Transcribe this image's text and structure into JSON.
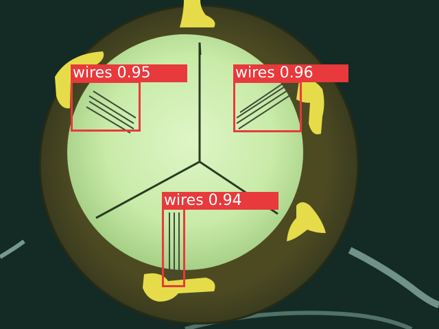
{
  "image": {
    "background_color": "#142a25",
    "disc_color": "#4a4a24",
    "lit_area_color": "#cfeeb2",
    "pad_color": "#e6dc4a",
    "box_color": "#e8393c",
    "label_text_color": "#ffffff"
  },
  "detections": [
    {
      "label": "wires 0.95"
    },
    {
      "label": "wires 0.96"
    },
    {
      "label": "wires 0.94"
    }
  ]
}
